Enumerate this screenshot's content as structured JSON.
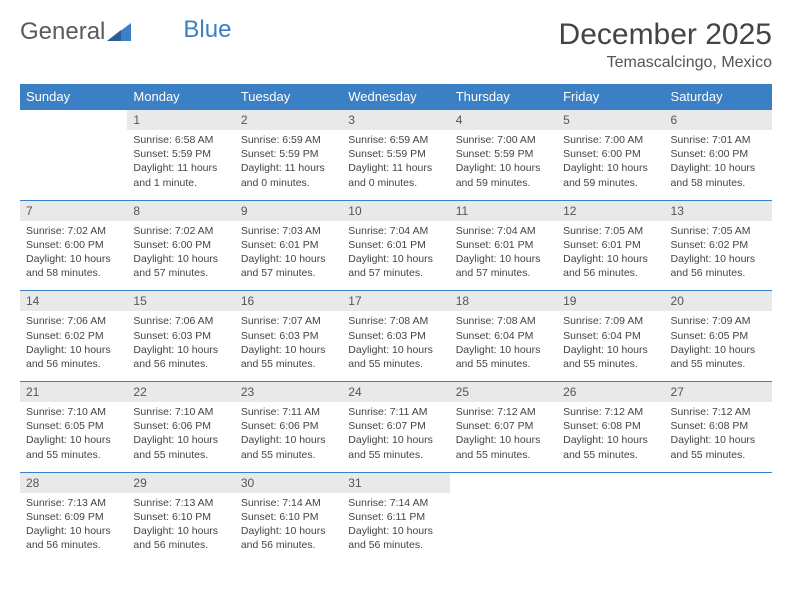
{
  "logo": {
    "text1": "General",
    "text2": "Blue"
  },
  "title": "December 2025",
  "location": "Temascalcingo, Mexico",
  "colors": {
    "accent": "#3b7fc4",
    "header_row_bg": "#3b7fc4",
    "header_row_text": "#ffffff",
    "daynum_bg": "#e9e9e9",
    "text": "#444444",
    "background": "#ffffff"
  },
  "day_headers": [
    "Sunday",
    "Monday",
    "Tuesday",
    "Wednesday",
    "Thursday",
    "Friday",
    "Saturday"
  ],
  "weeks": [
    {
      "nums": [
        "",
        "1",
        "2",
        "3",
        "4",
        "5",
        "6"
      ],
      "cells": [
        null,
        {
          "sunrise": "Sunrise: 6:58 AM",
          "sunset": "Sunset: 5:59 PM",
          "daylight": "Daylight: 11 hours and 1 minute."
        },
        {
          "sunrise": "Sunrise: 6:59 AM",
          "sunset": "Sunset: 5:59 PM",
          "daylight": "Daylight: 11 hours and 0 minutes."
        },
        {
          "sunrise": "Sunrise: 6:59 AM",
          "sunset": "Sunset: 5:59 PM",
          "daylight": "Daylight: 11 hours and 0 minutes."
        },
        {
          "sunrise": "Sunrise: 7:00 AM",
          "sunset": "Sunset: 5:59 PM",
          "daylight": "Daylight: 10 hours and 59 minutes."
        },
        {
          "sunrise": "Sunrise: 7:00 AM",
          "sunset": "Sunset: 6:00 PM",
          "daylight": "Daylight: 10 hours and 59 minutes."
        },
        {
          "sunrise": "Sunrise: 7:01 AM",
          "sunset": "Sunset: 6:00 PM",
          "daylight": "Daylight: 10 hours and 58 minutes."
        }
      ]
    },
    {
      "nums": [
        "7",
        "8",
        "9",
        "10",
        "11",
        "12",
        "13"
      ],
      "cells": [
        {
          "sunrise": "Sunrise: 7:02 AM",
          "sunset": "Sunset: 6:00 PM",
          "daylight": "Daylight: 10 hours and 58 minutes."
        },
        {
          "sunrise": "Sunrise: 7:02 AM",
          "sunset": "Sunset: 6:00 PM",
          "daylight": "Daylight: 10 hours and 57 minutes."
        },
        {
          "sunrise": "Sunrise: 7:03 AM",
          "sunset": "Sunset: 6:01 PM",
          "daylight": "Daylight: 10 hours and 57 minutes."
        },
        {
          "sunrise": "Sunrise: 7:04 AM",
          "sunset": "Sunset: 6:01 PM",
          "daylight": "Daylight: 10 hours and 57 minutes."
        },
        {
          "sunrise": "Sunrise: 7:04 AM",
          "sunset": "Sunset: 6:01 PM",
          "daylight": "Daylight: 10 hours and 57 minutes."
        },
        {
          "sunrise": "Sunrise: 7:05 AM",
          "sunset": "Sunset: 6:01 PM",
          "daylight": "Daylight: 10 hours and 56 minutes."
        },
        {
          "sunrise": "Sunrise: 7:05 AM",
          "sunset": "Sunset: 6:02 PM",
          "daylight": "Daylight: 10 hours and 56 minutes."
        }
      ]
    },
    {
      "nums": [
        "14",
        "15",
        "16",
        "17",
        "18",
        "19",
        "20"
      ],
      "cells": [
        {
          "sunrise": "Sunrise: 7:06 AM",
          "sunset": "Sunset: 6:02 PM",
          "daylight": "Daylight: 10 hours and 56 minutes."
        },
        {
          "sunrise": "Sunrise: 7:06 AM",
          "sunset": "Sunset: 6:03 PM",
          "daylight": "Daylight: 10 hours and 56 minutes."
        },
        {
          "sunrise": "Sunrise: 7:07 AM",
          "sunset": "Sunset: 6:03 PM",
          "daylight": "Daylight: 10 hours and 55 minutes."
        },
        {
          "sunrise": "Sunrise: 7:08 AM",
          "sunset": "Sunset: 6:03 PM",
          "daylight": "Daylight: 10 hours and 55 minutes."
        },
        {
          "sunrise": "Sunrise: 7:08 AM",
          "sunset": "Sunset: 6:04 PM",
          "daylight": "Daylight: 10 hours and 55 minutes."
        },
        {
          "sunrise": "Sunrise: 7:09 AM",
          "sunset": "Sunset: 6:04 PM",
          "daylight": "Daylight: 10 hours and 55 minutes."
        },
        {
          "sunrise": "Sunrise: 7:09 AM",
          "sunset": "Sunset: 6:05 PM",
          "daylight": "Daylight: 10 hours and 55 minutes."
        }
      ]
    },
    {
      "nums": [
        "21",
        "22",
        "23",
        "24",
        "25",
        "26",
        "27"
      ],
      "cells": [
        {
          "sunrise": "Sunrise: 7:10 AM",
          "sunset": "Sunset: 6:05 PM",
          "daylight": "Daylight: 10 hours and 55 minutes."
        },
        {
          "sunrise": "Sunrise: 7:10 AM",
          "sunset": "Sunset: 6:06 PM",
          "daylight": "Daylight: 10 hours and 55 minutes."
        },
        {
          "sunrise": "Sunrise: 7:11 AM",
          "sunset": "Sunset: 6:06 PM",
          "daylight": "Daylight: 10 hours and 55 minutes."
        },
        {
          "sunrise": "Sunrise: 7:11 AM",
          "sunset": "Sunset: 6:07 PM",
          "daylight": "Daylight: 10 hours and 55 minutes."
        },
        {
          "sunrise": "Sunrise: 7:12 AM",
          "sunset": "Sunset: 6:07 PM",
          "daylight": "Daylight: 10 hours and 55 minutes."
        },
        {
          "sunrise": "Sunrise: 7:12 AM",
          "sunset": "Sunset: 6:08 PM",
          "daylight": "Daylight: 10 hours and 55 minutes."
        },
        {
          "sunrise": "Sunrise: 7:12 AM",
          "sunset": "Sunset: 6:08 PM",
          "daylight": "Daylight: 10 hours and 55 minutes."
        }
      ]
    },
    {
      "nums": [
        "28",
        "29",
        "30",
        "31",
        "",
        "",
        ""
      ],
      "cells": [
        {
          "sunrise": "Sunrise: 7:13 AM",
          "sunset": "Sunset: 6:09 PM",
          "daylight": "Daylight: 10 hours and 56 minutes."
        },
        {
          "sunrise": "Sunrise: 7:13 AM",
          "sunset": "Sunset: 6:10 PM",
          "daylight": "Daylight: 10 hours and 56 minutes."
        },
        {
          "sunrise": "Sunrise: 7:14 AM",
          "sunset": "Sunset: 6:10 PM",
          "daylight": "Daylight: 10 hours and 56 minutes."
        },
        {
          "sunrise": "Sunrise: 7:14 AM",
          "sunset": "Sunset: 6:11 PM",
          "daylight": "Daylight: 10 hours and 56 minutes."
        },
        null,
        null,
        null
      ]
    }
  ]
}
